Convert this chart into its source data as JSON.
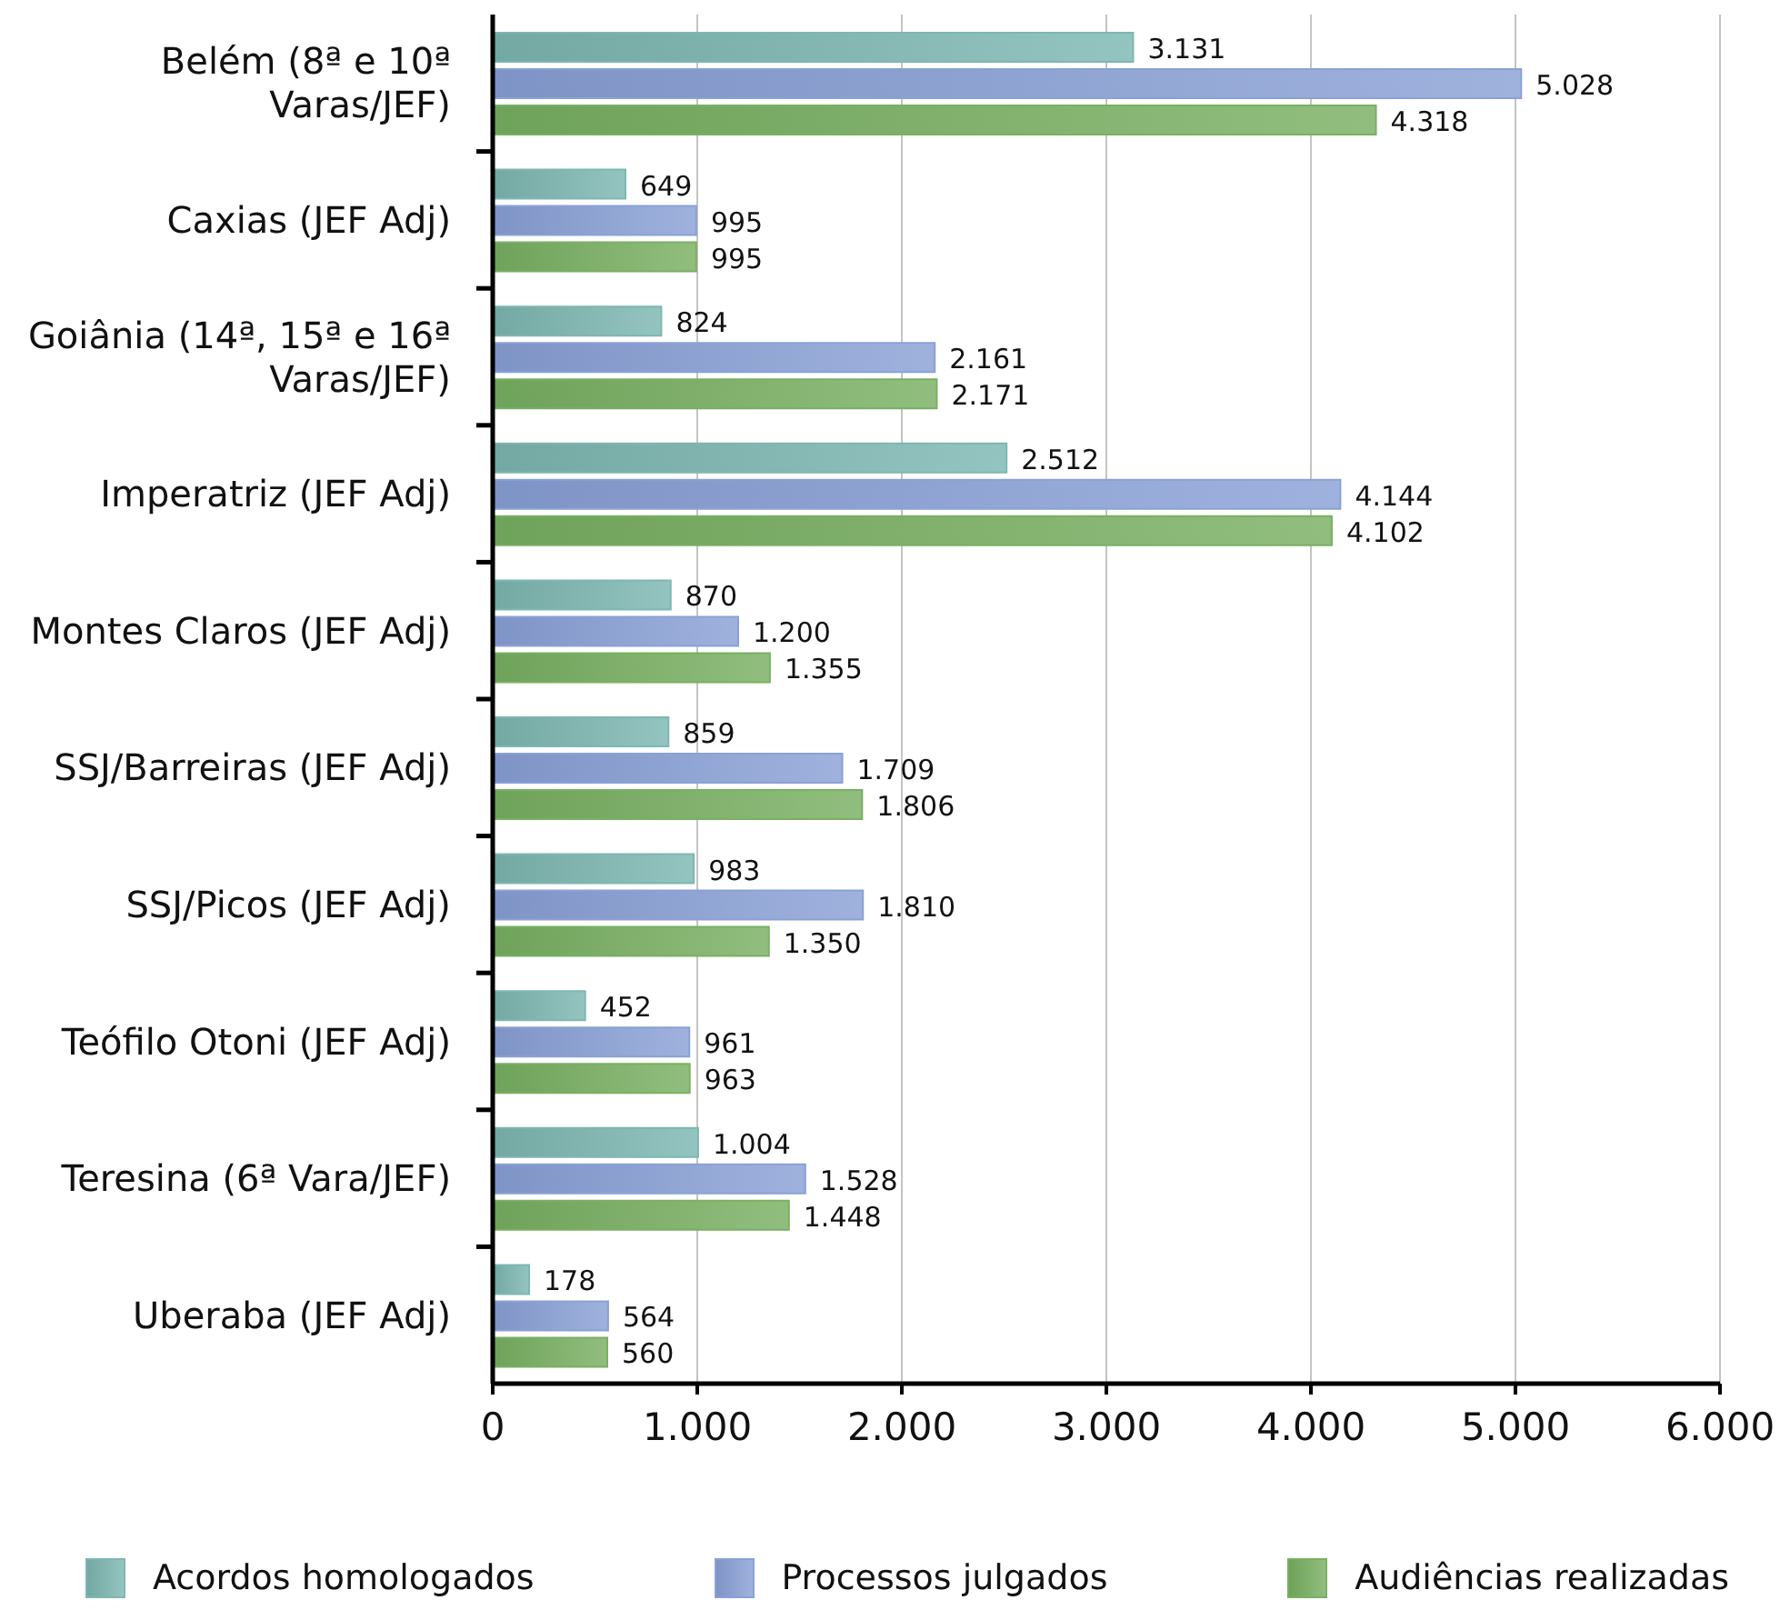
{
  "chart_data": {
    "type": "bar",
    "orientation": "horizontal",
    "categories": [
      "Belém (8ª e 10ª Varas/JEF)",
      "Caxias (JEF Adj)",
      "Goiânia (14ª, 15ª e 16ª Varas/JEF)",
      "Imperatriz (JEF Adj)",
      "Montes Claros (JEF Adj)",
      "SSJ/Barreiras (JEF Adj)",
      "SSJ/Picos (JEF Adj)",
      "Teófilo Otoni (JEF Adj)",
      "Teresina (6ª Vara/JEF)",
      "Uberaba (JEF Adj)"
    ],
    "series": [
      {
        "name": "Acordos homologados",
        "color": "#7db7b1",
        "values": [
          3131,
          649,
          824,
          2512,
          870,
          859,
          983,
          452,
          1004,
          178
        ],
        "value_labels": [
          "3.131",
          "649",
          "824",
          "2.512",
          "870",
          "859",
          "983",
          "452",
          "1.004",
          "178"
        ]
      },
      {
        "name": "Processos julgados",
        "color": "#8aa1d7",
        "values": [
          5028,
          995,
          2161,
          4144,
          1200,
          1709,
          1810,
          961,
          1528,
          564
        ],
        "value_labels": [
          "5.028",
          "995",
          "2.161",
          "4.144",
          "1.200",
          "1.709",
          "1.810",
          "961",
          "1.528",
          "564"
        ]
      },
      {
        "name": "Audiências realizadas",
        "color": "#79b062",
        "values": [
          4318,
          995,
          2171,
          4102,
          1355,
          1806,
          1350,
          963,
          1448,
          560
        ],
        "value_labels": [
          "4.318",
          "995",
          "2.171",
          "4.102",
          "1.355",
          "1.806",
          "1.350",
          "963",
          "1.448",
          "560"
        ]
      }
    ],
    "xlim": [
      0,
      6000
    ],
    "xticks": [
      0,
      {
        "value": 1000,
        "label": "1.000"
      },
      {
        "value": 2000,
        "label": "2.000"
      },
      {
        "value": 3000,
        "label": "3.000"
      },
      {
        "value": 4000,
        "label": "4.000"
      },
      {
        "value": 5000,
        "label": "5.000"
      },
      {
        "value": 6000,
        "label": "6.000"
      }
    ],
    "grid": "x",
    "legend": "bottom"
  }
}
